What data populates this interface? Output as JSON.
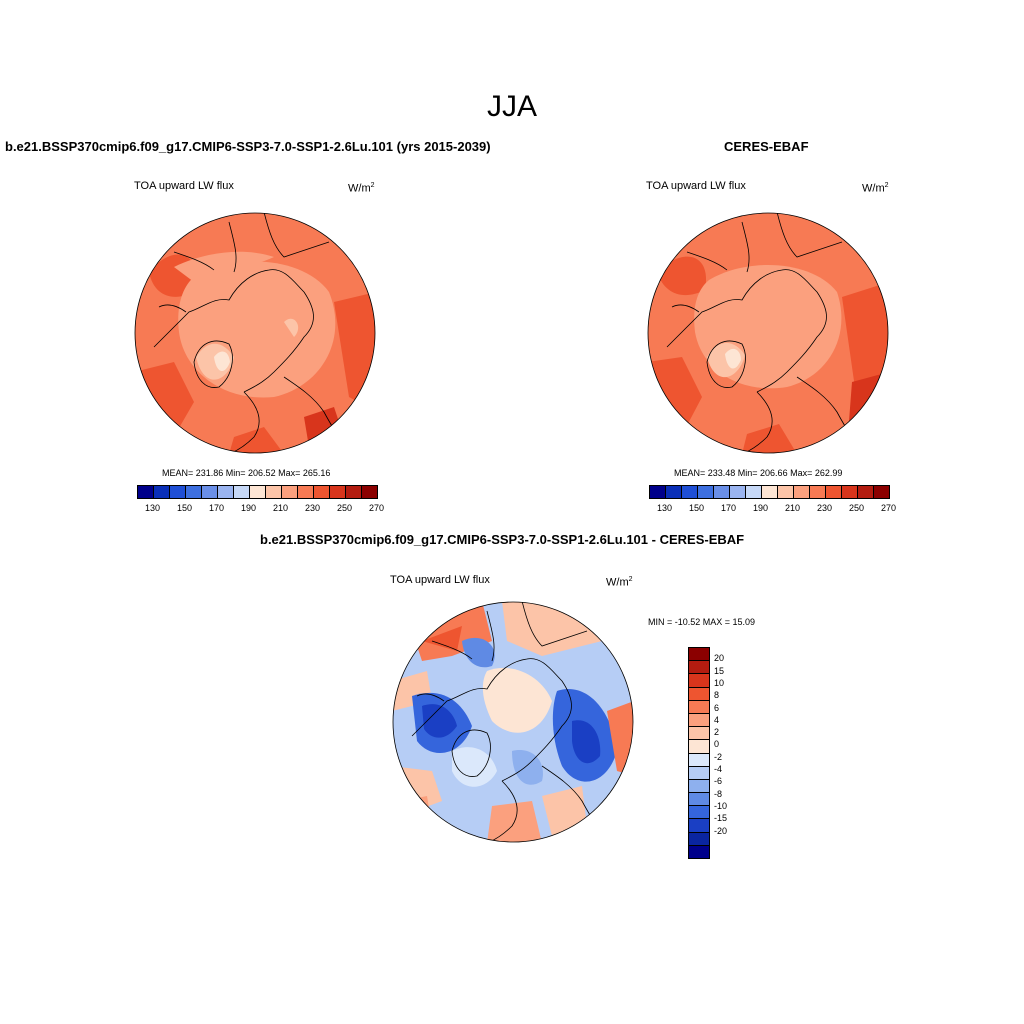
{
  "main_title": "JJA",
  "panels": {
    "model": {
      "title": "b.e21.BSSP370cmip6.f09_g17.CMIP6-SSP3-7.0-SSP1-2.6Lu.101 (yrs 2015-2039)",
      "variable": "TOA upward LW flux",
      "units_base": "W/m",
      "units_exp": "2",
      "stats": "MEAN= 231.86  Min= 206.52  Max= 265.16"
    },
    "obs": {
      "title": "CERES-EBAF",
      "variable": "TOA upward LW flux",
      "units_base": "W/m",
      "units_exp": "2",
      "stats": "MEAN= 233.48  Min= 206.66  Max= 262.99"
    },
    "diff": {
      "title": "b.e21.BSSP370cmip6.f09_g17.CMIP6-SSP3-7.0-SSP1-2.6Lu.101 - CERES-EBAF",
      "variable": "TOA upward LW flux",
      "units_base": "W/m",
      "units_exp": "2",
      "minmax": "MIN = -10.52 MAX =  15.09"
    }
  },
  "colorbars": {
    "abs_labels": [
      "130",
      "150",
      "170",
      "190",
      "210",
      "230",
      "250",
      "270"
    ],
    "abs_colors": [
      "#00008b",
      "#0a2fb8",
      "#1f4fd6",
      "#3d6fe0",
      "#6a8fe8",
      "#9ab4f0",
      "#c6d8f7",
      "#fde5d4",
      "#fcc4a8",
      "#fba07e",
      "#f77a54",
      "#ee5530",
      "#d8351c",
      "#b31c10",
      "#8b0000"
    ],
    "diff_labels": [
      "20",
      "15",
      "10",
      "8",
      "6",
      "4",
      "2",
      "0",
      "-2",
      "-4",
      "-6",
      "-8",
      "-10",
      "-15",
      "-20"
    ],
    "diff_colors": [
      "#8b0000",
      "#b31c10",
      "#d8351c",
      "#ee5530",
      "#f77a54",
      "#fba07e",
      "#fcc4a8",
      "#fde5d4",
      "#dbe8fb",
      "#b6cdf5",
      "#8eb0ee",
      "#5f8ae4",
      "#3565dc",
      "#1a3fc4",
      "#0a25a0",
      "#00008b"
    ]
  }
}
